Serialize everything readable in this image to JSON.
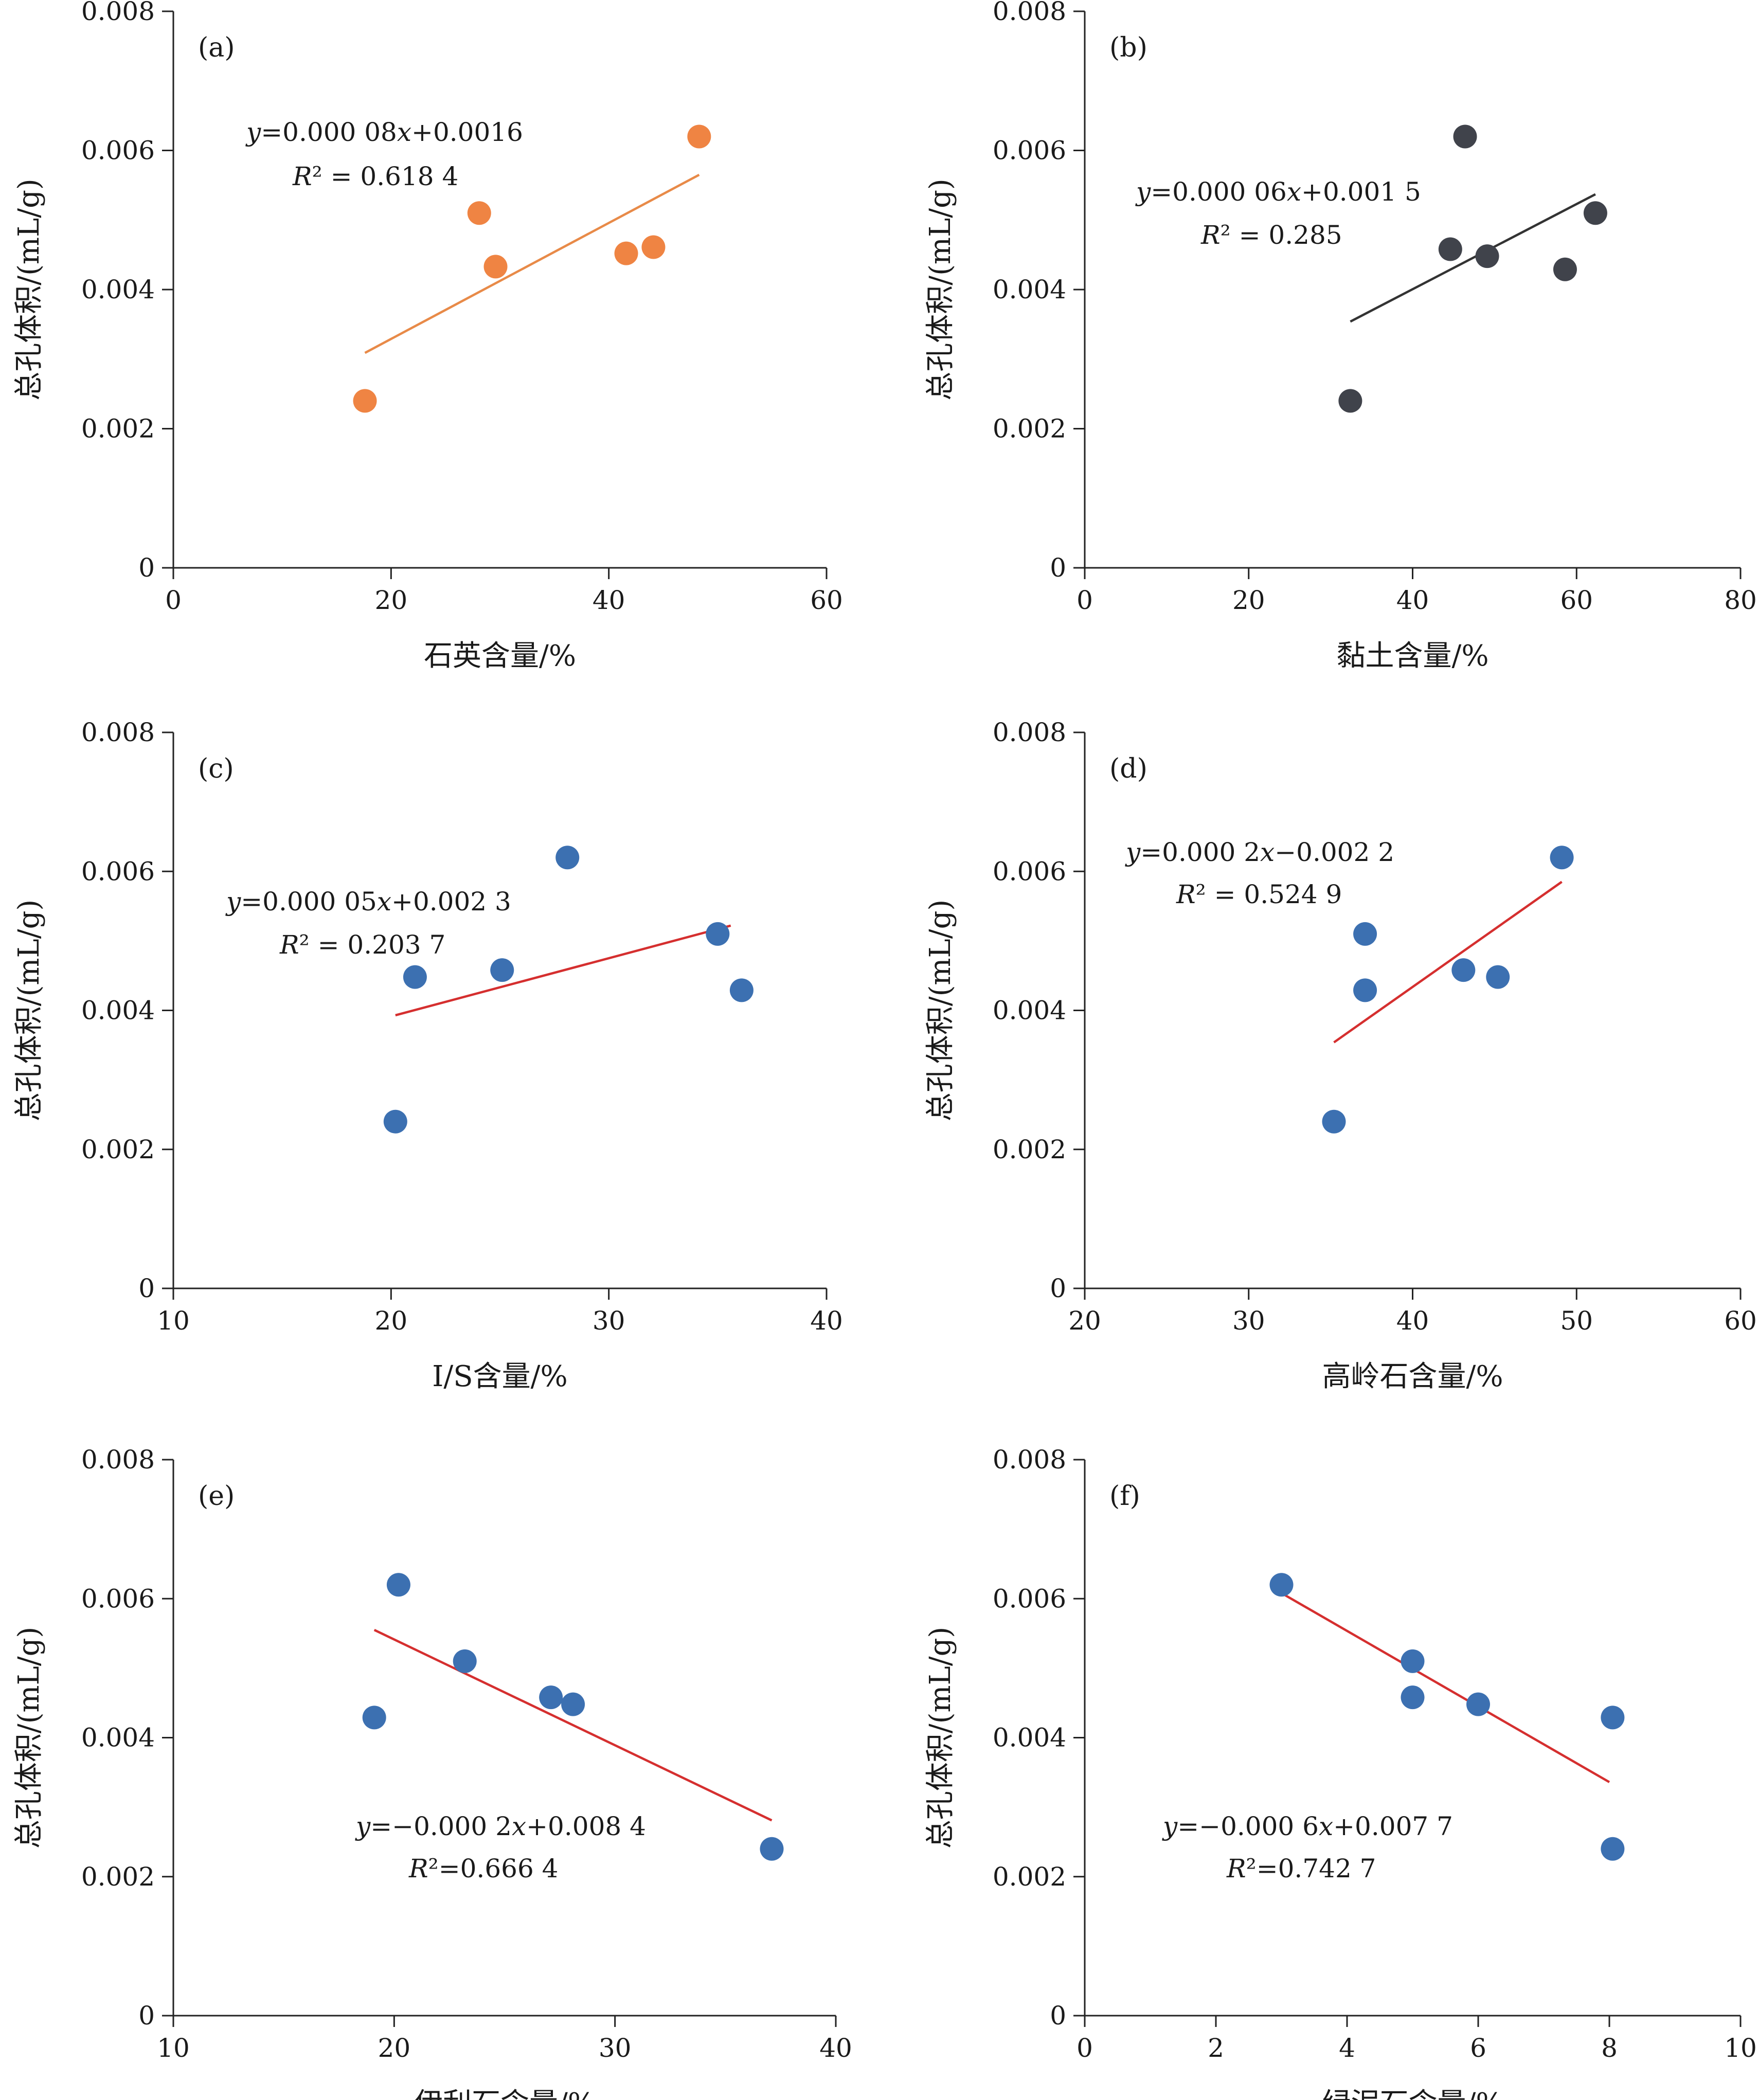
{
  "chart_data": [
    {
      "type": "scatter",
      "panel_label": "(a)",
      "xlabel": "石英含量/%",
      "ylabel": "总孔体积/(mL/g)",
      "xlim": [
        0,
        60
      ],
      "ylim": [
        0,
        0.008
      ],
      "x_ticks": [
        0,
        20,
        40,
        60
      ],
      "y_ticks": [
        0,
        0.002,
        0.004,
        0.006,
        0.008
      ],
      "x_tick_labels": [
        "0",
        "20",
        "40",
        "60"
      ],
      "y_tick_labels": [
        "0",
        "0.002",
        "0.004",
        "0.006",
        "0.008"
      ],
      "point_color": "#ef8443",
      "line_color": "#e88a48",
      "points": [
        [
          17.6,
          0.0024
        ],
        [
          28.1,
          0.0051
        ],
        [
          29.6,
          0.00433
        ],
        [
          41.6,
          0.00452
        ],
        [
          44.1,
          0.00461
        ],
        [
          48.3,
          0.0062
        ]
      ],
      "trendline": [
        [
          17.6,
          0.00309
        ],
        [
          48.3,
          0.00565
        ]
      ],
      "equation": "y=0.000 08x+0.0016",
      "r_squared": "R² = 0.618 4"
    },
    {
      "type": "scatter",
      "panel_label": "(b)",
      "xlabel": "黏土含量/%",
      "ylabel": "总孔体积/(mL/g)",
      "xlim": [
        0,
        80
      ],
      "ylim": [
        0,
        0.008
      ],
      "x_ticks": [
        0,
        20,
        40,
        60,
        80
      ],
      "y_ticks": [
        0,
        0.002,
        0.004,
        0.006,
        0.008
      ],
      "x_tick_labels": [
        "0",
        "20",
        "40",
        "60",
        "80"
      ],
      "y_tick_labels": [
        "0",
        "0.002",
        "0.004",
        "0.006",
        "0.008"
      ],
      "point_color": "#40434b",
      "line_color": "#333333",
      "points": [
        [
          32.4,
          0.0024
        ],
        [
          44.6,
          0.00458
        ],
        [
          46.4,
          0.0062
        ],
        [
          49.1,
          0.00448
        ],
        [
          58.6,
          0.00429
        ],
        [
          62.3,
          0.0051
        ]
      ],
      "trendline": [
        [
          32.4,
          0.00354
        ],
        [
          62.3,
          0.00537
        ]
      ],
      "equation": "y=0.000 06x+0.001 5",
      "r_squared": "R² = 0.285"
    },
    {
      "type": "scatter",
      "panel_label": "(c)",
      "xlabel": "I/S含量/%",
      "ylabel": "总孔体积/(mL/g)",
      "xlim": [
        10,
        40
      ],
      "ylim": [
        0,
        0.008
      ],
      "x_ticks": [
        10,
        20,
        30,
        40
      ],
      "y_ticks": [
        0,
        0.002,
        0.004,
        0.006,
        0.008
      ],
      "x_tick_labels": [
        "10",
        "20",
        "30",
        "40"
      ],
      "y_tick_labels": [
        "0",
        "0.002",
        "0.004",
        "0.006",
        "0.008"
      ],
      "point_color": "#3c70b1",
      "line_color": "#d52f2f",
      "points": [
        [
          20.2,
          0.0024
        ],
        [
          21.1,
          0.00448
        ],
        [
          25.1,
          0.00458
        ],
        [
          28.1,
          0.0062
        ],
        [
          35.0,
          0.0051
        ],
        [
          36.1,
          0.00429
        ]
      ],
      "trendline": [
        [
          20.2,
          0.00393
        ],
        [
          35.6,
          0.00522
        ]
      ],
      "equation": "y=0.000 05x+0.002 3",
      "r_squared": "R² = 0.203 7"
    },
    {
      "type": "scatter",
      "panel_label": "(d)",
      "xlabel": "高岭石含量/%",
      "ylabel": "总孔体积/(mL/g)",
      "xlim": [
        20,
        60
      ],
      "ylim": [
        0,
        0.008
      ],
      "x_ticks": [
        20,
        30,
        40,
        50,
        60
      ],
      "y_ticks": [
        0,
        0.002,
        0.004,
        0.006,
        0.008
      ],
      "x_tick_labels": [
        "20",
        "30",
        "40",
        "50",
        "60"
      ],
      "y_tick_labels": [
        "0",
        "0.002",
        "0.004",
        "0.006",
        "0.008"
      ],
      "point_color": "#3c70b1",
      "line_color": "#d52f2f",
      "points": [
        [
          35.2,
          0.0024
        ],
        [
          37.1,
          0.0051
        ],
        [
          37.1,
          0.00429
        ],
        [
          43.1,
          0.00458
        ],
        [
          45.2,
          0.00448
        ],
        [
          49.1,
          0.0062
        ]
      ],
      "trendline": [
        [
          35.2,
          0.00354
        ],
        [
          49.1,
          0.00585
        ]
      ],
      "equation": "y=0.000 2x−0.002 2",
      "r_squared": "R² = 0.524 9"
    },
    {
      "type": "scatter",
      "panel_label": "(e)",
      "xlabel": "伊利石含量/%",
      "ylabel": "总孔体积/(mL/g)",
      "xlim": [
        10,
        40
      ],
      "ylim": [
        0,
        0.008
      ],
      "x_ticks": [
        10,
        20,
        30,
        40
      ],
      "y_ticks": [
        0,
        0.002,
        0.004,
        0.006,
        0.008
      ],
      "x_tick_labels": [
        "10",
        "20",
        "30",
        "40"
      ],
      "y_tick_labels": [
        "0",
        "0.002",
        "0.004",
        "0.006",
        "0.008"
      ],
      "point_color": "#3c70b1",
      "line_color": "#d52f2f",
      "points": [
        [
          19.1,
          0.00429
        ],
        [
          20.2,
          0.0062
        ],
        [
          23.2,
          0.0051
        ],
        [
          27.1,
          0.00458
        ],
        [
          28.1,
          0.00448
        ],
        [
          37.1,
          0.0024
        ]
      ],
      "trendline": [
        [
          19.1,
          0.00555
        ],
        [
          37.1,
          0.00281
        ]
      ],
      "equation": "y=−0.000 2x+0.008 4",
      "r_squared": "R²=0.666 4"
    },
    {
      "type": "scatter",
      "panel_label": "(f)",
      "xlabel": "绿泥石含量/%",
      "ylabel": "总孔体积/(mL/g)",
      "xlim": [
        0,
        10
      ],
      "ylim": [
        0,
        0.008
      ],
      "x_ticks": [
        0,
        2,
        4,
        6,
        8,
        10
      ],
      "y_ticks": [
        0,
        0.002,
        0.004,
        0.006,
        0.008
      ],
      "x_tick_labels": [
        "0",
        "2",
        "4",
        "6",
        "8",
        "10"
      ],
      "y_tick_labels": [
        "0",
        "0.002",
        "0.004",
        "0.006",
        "0.008"
      ],
      "point_color": "#3c70b1",
      "line_color": "#d52f2f",
      "points": [
        [
          3.0,
          0.0062
        ],
        [
          5.0,
          0.0051
        ],
        [
          5.0,
          0.00458
        ],
        [
          6.0,
          0.00448
        ],
        [
          8.05,
          0.00429
        ],
        [
          8.05,
          0.0024
        ]
      ],
      "trendline": [
        [
          3.0,
          0.00608
        ],
        [
          8.0,
          0.00336
        ]
      ],
      "equation": "y=−0.000 6x+0.007 7",
      "r_squared": "R²=0.742 7"
    }
  ]
}
